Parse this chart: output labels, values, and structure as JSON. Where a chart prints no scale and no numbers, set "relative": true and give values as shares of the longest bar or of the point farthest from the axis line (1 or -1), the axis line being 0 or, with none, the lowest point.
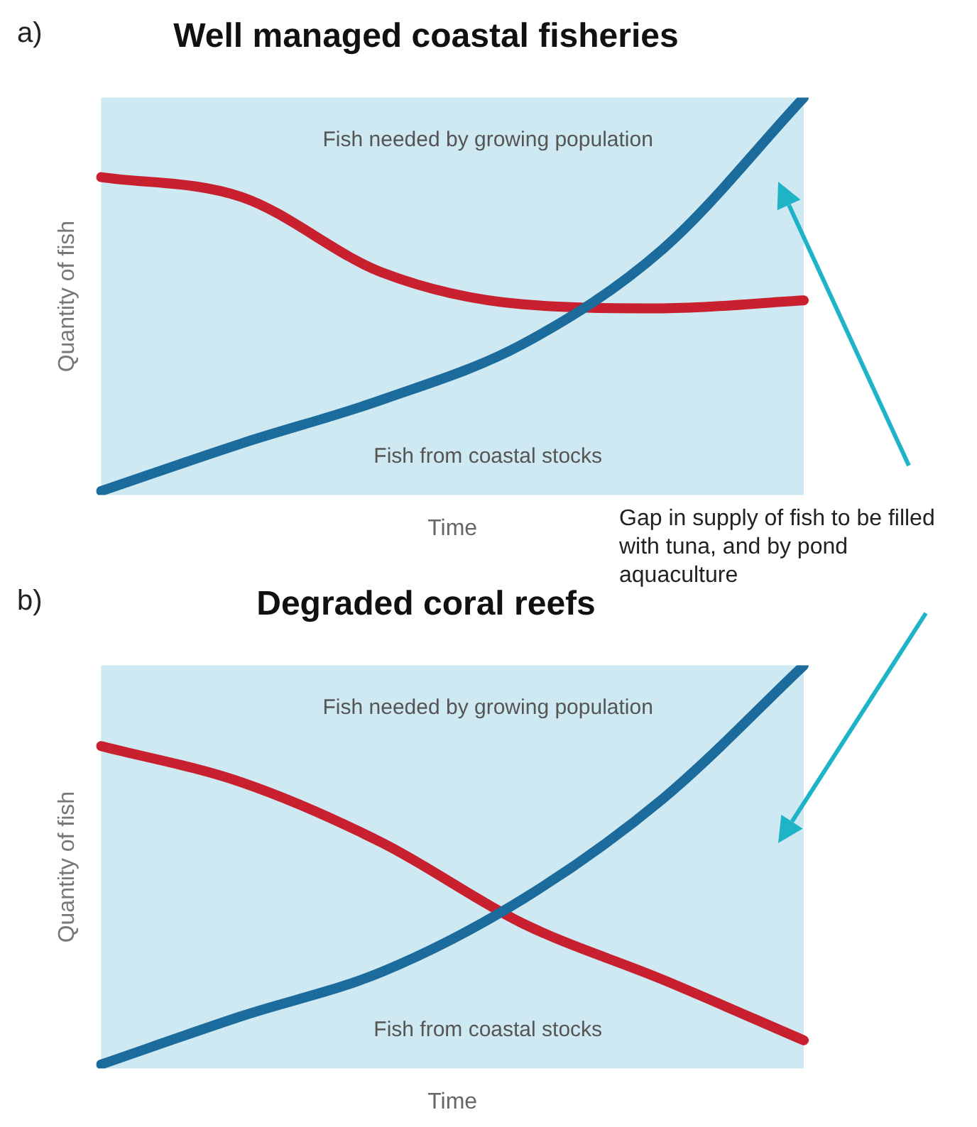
{
  "chart_data": [
    {
      "type": "line",
      "title": "Well managed coastal fisheries",
      "xlabel": "Time",
      "ylabel": "Quantity of fish",
      "relative": true,
      "categories": [
        null,
        null,
        null,
        null,
        null,
        null
      ],
      "series": [
        {
          "color": "#1b6c9c",
          "values": [
            0.01,
            0.13,
            0.24,
            0.38,
            0.62,
            1
          ]
        },
        {
          "color": "#c8202f",
          "values": [
            0.8,
            0.75,
            0.56,
            0.48,
            0.47,
            0.49
          ]
        }
      ],
      "annotations": [
        "a)",
        "Fish needed by growing population",
        "Fish from coastal stocks",
        "Gap in supply of fish to be filled with tuna, and by pond aquaculture"
      ]
    },
    {
      "type": "line",
      "title": "Degraded coral reefs",
      "xlabel": "Time",
      "ylabel": "Quantity of fish",
      "relative": true,
      "categories": [
        null,
        null,
        null,
        null,
        null,
        null
      ],
      "series": [
        {
          "color": "#1b6c9c",
          "values": [
            0.01,
            0.13,
            0.24,
            0.42,
            0.67,
            1
          ]
        },
        {
          "color": "#c8202f",
          "values": [
            0.8,
            0.71,
            0.56,
            0.36,
            0.22,
            0.07
          ]
        }
      ],
      "annotations": [
        "b)",
        "Fish needed by growing population",
        "Fish from coastal stocks"
      ]
    }
  ]
}
